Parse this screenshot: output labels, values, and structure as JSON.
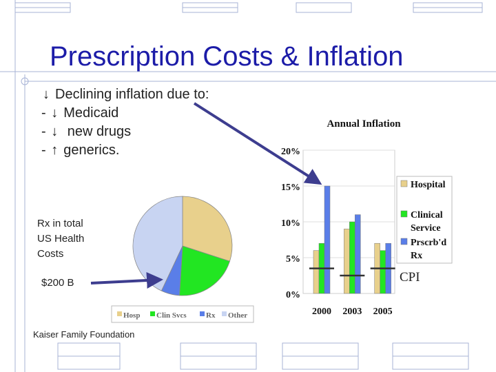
{
  "slide": {
    "title": "Prescription Costs & Inflation",
    "bullets": [
      {
        "dash": "",
        "arrow": "down",
        "text": "Declining inflation due to:"
      },
      {
        "dash": "-",
        "arrow": "down",
        "text": "Medicaid"
      },
      {
        "dash": "-",
        "arrow": "down",
        "text": " new drugs"
      },
      {
        "dash": "-",
        "arrow": "up",
        "text": "generics."
      }
    ],
    "pie_note": [
      "Rx in total",
      "US Health",
      "Costs"
    ],
    "pie_amount": "$200 B",
    "source": "Kaiser Family Foundation",
    "cpi_label": "CPI",
    "colors": {
      "title": "#1c1ca8",
      "pointer_arrow": "#3d3d8f",
      "grid": "#a7b3d6"
    }
  },
  "chart_data": [
    {
      "type": "pie",
      "title": "",
      "categories": [
        "Hosp",
        "Clin Svcs",
        "Rx",
        "Other"
      ],
      "values": [
        30,
        21,
        6,
        43
      ],
      "colors": [
        "#e8d08c",
        "#22e622",
        "#5a7ee8",
        "#c8d4f2"
      ],
      "legend": "bottom"
    },
    {
      "type": "bar",
      "title": "Annual Inflation",
      "categories": [
        "2000",
        "2003",
        "2005"
      ],
      "series": [
        {
          "name": "Hospital",
          "values": [
            6,
            9,
            7
          ],
          "color": "#e8d08c"
        },
        {
          "name": "Clinical Service",
          "values": [
            7,
            10,
            6
          ],
          "color": "#22e622"
        },
        {
          "name": "Prscrb'd Rx",
          "values": [
            15,
            11,
            7
          ],
          "color": "#5a7ee8"
        }
      ],
      "cpi": [
        3.5,
        2.5,
        3.5
      ],
      "yticks": [
        "0%",
        "5%",
        "10%",
        "15%",
        "20%"
      ],
      "ylim": [
        0,
        20
      ],
      "legend": "right"
    }
  ]
}
